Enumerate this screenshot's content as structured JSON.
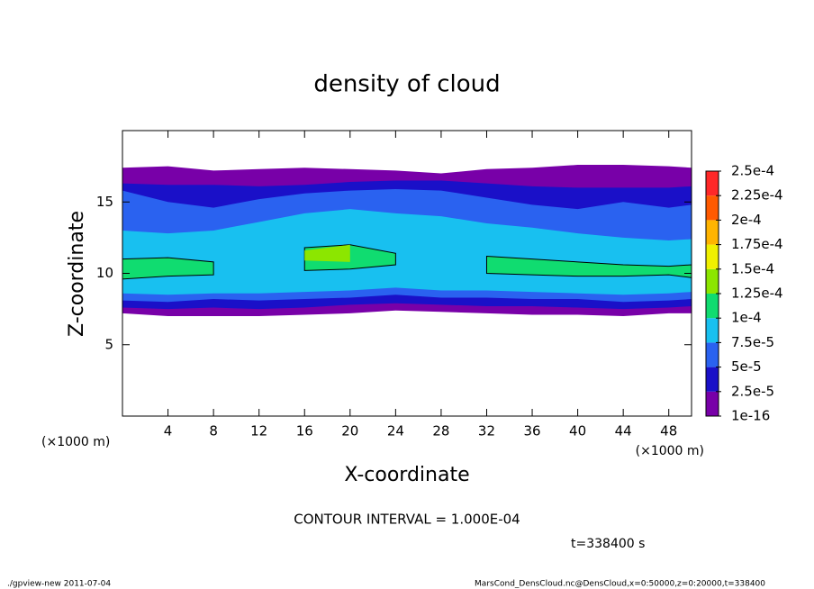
{
  "chart_data": {
    "type": "contour",
    "title": "density of cloud",
    "x_label": "X-coordinate",
    "y_label": "Z-coordinate",
    "x_unit": "(×1000 m)",
    "y_unit": "(×1000 m)",
    "contour_note": "CONTOUR INTERVAL = 1.000E-04",
    "time_note": "t=338400 s",
    "footer_left": "./gpview-new  2011-07-04",
    "footer_right": "MarsCond_DensCloud.nc@DensCloud,x=0:50000,z=0:20000,t=338400",
    "xlim": [
      0,
      50
    ],
    "xticks": [
      4,
      8,
      12,
      16,
      20,
      24,
      28,
      32,
      36,
      40,
      44,
      48
    ],
    "ylim": [
      0,
      20
    ],
    "yticks": [
      5,
      10,
      15
    ],
    "x": [
      0,
      4,
      8,
      12,
      16,
      20,
      24,
      28,
      32,
      36,
      40,
      44,
      48,
      50
    ],
    "layers": [
      {
        "color": "#7800a8",
        "bottom": [
          7.2,
          7.0,
          7.0,
          7.0,
          7.1,
          7.2,
          7.4,
          7.3,
          7.2,
          7.1,
          7.1,
          7.0,
          7.2,
          7.2
        ],
        "top": [
          17.4,
          17.5,
          17.2,
          17.3,
          17.4,
          17.3,
          17.2,
          17.0,
          17.3,
          17.4,
          17.6,
          17.6,
          17.5,
          17.4
        ]
      },
      {
        "color": "#1a10c8",
        "bottom": [
          7.6,
          7.5,
          7.6,
          7.5,
          7.6,
          7.8,
          7.9,
          7.8,
          7.7,
          7.7,
          7.6,
          7.5,
          7.6,
          7.7
        ],
        "top": [
          16.3,
          16.2,
          16.2,
          16.1,
          16.2,
          16.4,
          16.5,
          16.5,
          16.3,
          16.1,
          16.0,
          16.0,
          16.0,
          16.1
        ]
      },
      {
        "color": "#2a62f0",
        "bottom": [
          8.1,
          8.0,
          8.2,
          8.1,
          8.2,
          8.3,
          8.5,
          8.3,
          8.3,
          8.2,
          8.2,
          8.0,
          8.1,
          8.2
        ],
        "top": [
          15.8,
          15.0,
          14.6,
          15.2,
          15.6,
          15.8,
          15.9,
          15.8,
          15.3,
          14.8,
          14.5,
          15.0,
          14.6,
          14.8
        ]
      },
      {
        "color": "#18c0f0",
        "bottom": [
          8.6,
          8.5,
          8.6,
          8.6,
          8.7,
          8.8,
          9.0,
          8.8,
          8.8,
          8.7,
          8.6,
          8.5,
          8.6,
          8.7
        ],
        "top": [
          13.0,
          12.8,
          13.0,
          13.6,
          14.2,
          14.5,
          14.2,
          14.0,
          13.5,
          13.2,
          12.8,
          12.5,
          12.3,
          12.4
        ]
      },
      {
        "color": "#10dc70",
        "contour": true,
        "bottom": [
          9.6,
          9.8,
          9.9,
          null,
          10.2,
          10.3,
          10.6,
          null,
          10.0,
          9.9,
          9.8,
          9.8,
          9.9,
          9.7
        ],
        "top": [
          11.0,
          11.1,
          10.8,
          null,
          11.8,
          12.0,
          11.4,
          null,
          11.2,
          11.0,
          10.8,
          10.6,
          10.5,
          10.6
        ]
      },
      {
        "color": "#8ce600",
        "bottom": [
          null,
          null,
          null,
          null,
          10.9,
          10.8,
          null,
          null,
          null,
          null,
          null,
          null,
          null,
          null
        ],
        "top": [
          null,
          null,
          null,
          null,
          11.6,
          12.0,
          null,
          null,
          null,
          null,
          null,
          null,
          null,
          null
        ]
      }
    ],
    "colorbar": {
      "ticks": [
        1e-16,
        {
          "value": 2.5e-05,
          "label": "2.5e-5"
        },
        {
          "value": 5e-05,
          "label": "5e-5"
        },
        {
          "value": 7.5e-05,
          "label": "7.5e-5"
        },
        {
          "value": 0.0001,
          "label": "1e-4"
        },
        {
          "value": 0.000125,
          "label": "1.25e-4"
        },
        {
          "value": 0.00015,
          "label": "1.5e-4"
        },
        {
          "value": 0.000175,
          "label": "1.75e-4"
        },
        {
          "value": 0.0002,
          "label": "2e-4"
        },
        {
          "value": 0.000225,
          "label": "2.25e-4"
        },
        {
          "value": 0.00025,
          "label": "2.5e-4"
        }
      ],
      "colors": [
        "#7800a8",
        "#1a10c8",
        "#2a62f0",
        "#18c0f0",
        "#10dc70",
        "#8ce600",
        "#f0f000",
        "#ffb400",
        "#ff5a00",
        "#ff2828"
      ]
    }
  }
}
